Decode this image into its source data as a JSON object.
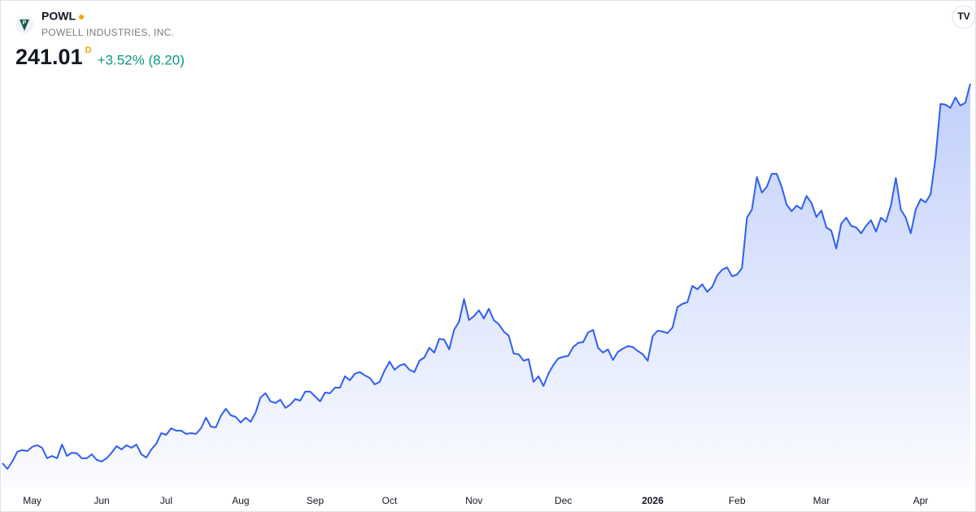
{
  "chart_data": {
    "type": "area",
    "symbol": "POWL",
    "company": "POWELL INDUSTRIES, INC.",
    "last_price": 241.01,
    "interval": "D",
    "change": "+3.52% (8.20)",
    "color": "#2f5ff0",
    "values": [
      77.6,
      75.1,
      78.3,
      82.5,
      83.2,
      82.8,
      84.6,
      85.3,
      84.2,
      79.7,
      80.7,
      79.7,
      85.6,
      80.7,
      82.1,
      81.8,
      79.7,
      79.7,
      81.4,
      79.0,
      78.3,
      79.7,
      82.1,
      84.9,
      83.5,
      85.3,
      84.2,
      85.6,
      81.4,
      80.0,
      83.5,
      86.0,
      90.5,
      89.8,
      92.6,
      91.6,
      91.6,
      90.2,
      90.5,
      90.2,
      92.6,
      97.2,
      93.3,
      93.0,
      97.9,
      101.0,
      98.2,
      97.5,
      95.1,
      97.2,
      95.4,
      99.3,
      105.9,
      107.7,
      104.2,
      103.5,
      104.9,
      101.4,
      102.8,
      105.2,
      104.5,
      108.4,
      108.4,
      106.3,
      104.2,
      108.0,
      107.7,
      110.1,
      110.1,
      115.0,
      113.3,
      116.1,
      116.8,
      115.4,
      114.3,
      111.5,
      112.6,
      117.5,
      121.3,
      117.8,
      119.6,
      120.3,
      117.8,
      116.8,
      121.7,
      123.1,
      127.3,
      125.2,
      131.1,
      130.8,
      126.6,
      135.0,
      138.5,
      148.3,
      139.2,
      140.9,
      143.4,
      139.9,
      144.1,
      139.2,
      137.4,
      134.3,
      132.5,
      124.8,
      124.5,
      121.7,
      122.4,
      112.6,
      115.0,
      110.8,
      116.1,
      119.9,
      122.7,
      123.4,
      123.8,
      127.6,
      129.4,
      129.7,
      133.9,
      135.0,
      127.3,
      125.2,
      126.6,
      122.0,
      125.5,
      126.9,
      128.0,
      127.6,
      125.9,
      124.5,
      121.7,
      132.2,
      134.6,
      134.3,
      133.6,
      136.0,
      144.8,
      146.2,
      146.9,
      153.9,
      152.5,
      154.6,
      151.4,
      153.5,
      158.4,
      160.9,
      161.9,
      158.1,
      158.8,
      161.6,
      183.3,
      186.8,
      200.8,
      194.1,
      196.6,
      202.2,
      202.2,
      196.6,
      188.9,
      186.1,
      188.5,
      187.1,
      192.7,
      189.6,
      183.6,
      186.4,
      179.1,
      177.7,
      170.0,
      180.8,
      183.3,
      179.8,
      179.1,
      176.6,
      179.8,
      182.2,
      177.3,
      183.3,
      181.5,
      188.5,
      200.4,
      186.8,
      183.3,
      176.6,
      186.8,
      191.3,
      189.9,
      193.4,
      209.2,
      232.3,
      232.0,
      230.6,
      235.1,
      231.6,
      232.81,
      241.01
    ],
    "xticks": [
      {
        "value": 6,
        "label": "May"
      },
      {
        "value": 20,
        "label": "Jun"
      },
      {
        "value": 33,
        "label": "Jul"
      },
      {
        "value": 48,
        "label": "Aug"
      },
      {
        "value": 63,
        "label": "Sep"
      },
      {
        "value": 78,
        "label": "Oct"
      },
      {
        "value": 95,
        "label": "Nov"
      },
      {
        "value": 113,
        "label": "Dec"
      },
      {
        "value": 131,
        "label": "2026",
        "bold": true
      },
      {
        "value": 148,
        "label": "Feb"
      },
      {
        "value": 165,
        "label": "Mar"
      },
      {
        "value": 185,
        "label": "Apr"
      }
    ]
  }
}
